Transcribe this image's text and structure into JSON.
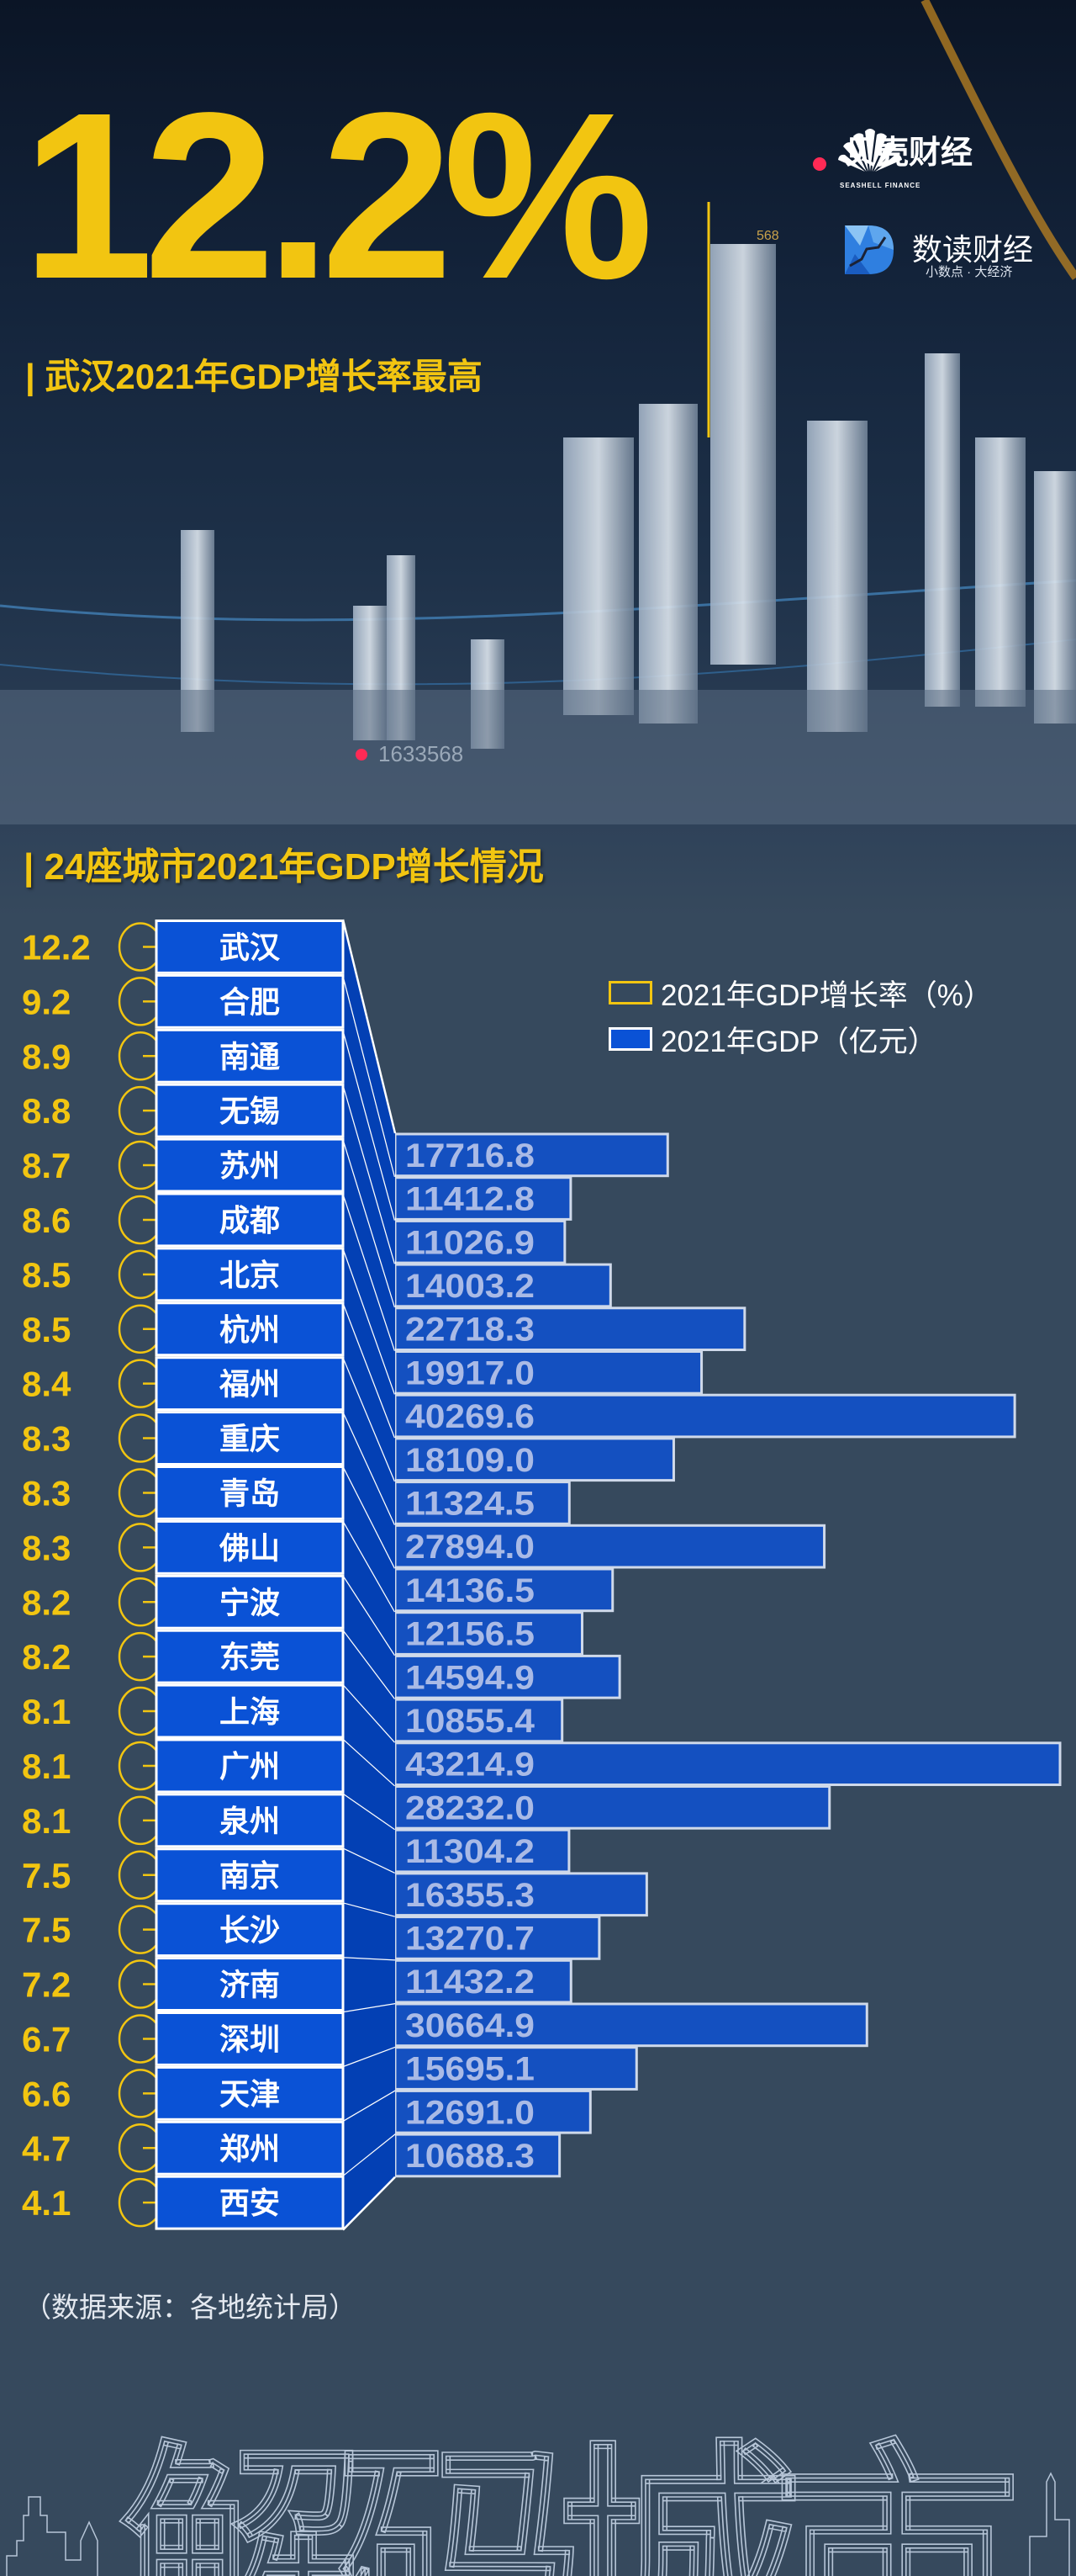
{
  "hero": {
    "headline": "12.2%",
    "subtitle": "| 武汉2021年GDP增长率最高",
    "bg_numbers": [
      "568",
      "1633568"
    ]
  },
  "logos": {
    "seashell": {
      "name": "贝壳财经",
      "tagline": "SEASHELL FINANCE"
    },
    "shudu": {
      "name": "数读财经",
      "tagline": "小数点 · 大经济"
    }
  },
  "section_title": "| 24座城市2021年GDP增长情况",
  "legend": {
    "rate": "2021年GDP增长率（%）",
    "gdp": "2021年GDP（亿元）"
  },
  "chart_data": {
    "type": "bar",
    "orientation": "horizontal",
    "categories": [
      "武汉",
      "合肥",
      "南通",
      "无锡",
      "苏州",
      "成都",
      "北京",
      "杭州",
      "福州",
      "重庆",
      "青岛",
      "佛山",
      "宁波",
      "东莞",
      "上海",
      "广州",
      "泉州",
      "南京",
      "长沙",
      "济南",
      "深圳",
      "天津",
      "郑州",
      "西安"
    ],
    "series": [
      {
        "name": "2021年GDP增长率（%）",
        "values": [
          12.2,
          9.2,
          8.9,
          8.8,
          8.7,
          8.6,
          8.5,
          8.5,
          8.4,
          8.3,
          8.3,
          8.3,
          8.2,
          8.2,
          8.1,
          8.1,
          8.1,
          7.5,
          7.5,
          7.2,
          6.7,
          6.6,
          4.7,
          4.1
        ]
      },
      {
        "name": "2021年GDP（亿元）",
        "values": [
          17716.8,
          11412.8,
          11026.9,
          14003.2,
          22718.3,
          19917.0,
          40269.6,
          18109.0,
          11324.5,
          27894.0,
          14136.5,
          12156.5,
          14594.9,
          10855.4,
          43214.9,
          28232.0,
          11304.2,
          16355.3,
          13270.7,
          11432.2,
          30664.9,
          15695.1,
          12691.0,
          10688.3
        ]
      }
    ],
    "rate_labels": [
      "12.2",
      "9.2",
      "8.9",
      "8.8",
      "8.7",
      "8.6",
      "8.5",
      "8.5",
      "8.4",
      "8.3",
      "8.3",
      "8.3",
      "8.2",
      "8.2",
      "8.1",
      "8.1",
      "8.1",
      "7.5",
      "7.5",
      "7.2",
      "6.7",
      "6.6",
      "4.7",
      "4.1"
    ],
    "gdp_labels": [
      "17716.8",
      "11412.8",
      "11026.9",
      "14003.2",
      "22718.3",
      "19917.0",
      "40269.6",
      "18109.0",
      "11324.5",
      "27894.0",
      "14136.5",
      "12156.5",
      "14594.9",
      "10855.4",
      "43214.9",
      "28232.0",
      "11304.2",
      "16355.3",
      "13270.7",
      "11432.2",
      "30664.9",
      "15695.1",
      "12691.0",
      "10688.3"
    ],
    "legend_position": "top-right",
    "grid": false,
    "colors": {
      "rate": "#f2c511",
      "city_box": "#0a52d6",
      "connector": "#0340b4",
      "bar": "#1450c0",
      "bar_text": "#a9bae6"
    }
  },
  "source": "（数据来源：各地统计局）",
  "watermark": "解码城市",
  "colors": {
    "accent": "#f2c511",
    "background": "#36495d"
  }
}
